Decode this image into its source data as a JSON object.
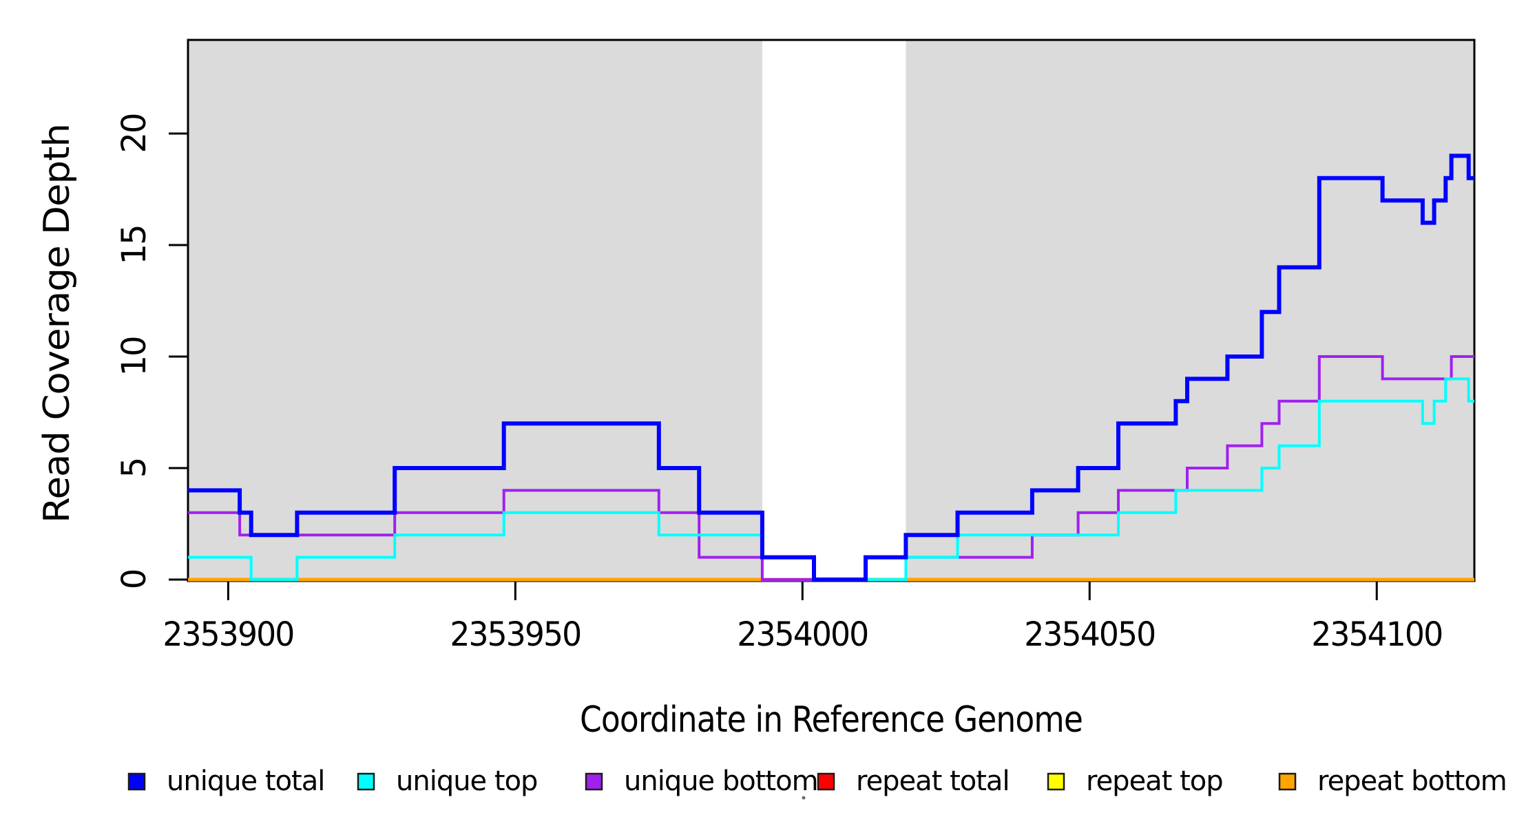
{
  "chart_data": {
    "type": "step-line",
    "title": "",
    "xlabel": "Coordinate in Reference Genome",
    "ylabel": "Read Coverage Depth",
    "xlim": [
      2353893,
      2354117
    ],
    "ylim": [
      0,
      24.2
    ],
    "x_ticks": [
      2353900,
      2353950,
      2354000,
      2354050,
      2354100
    ],
    "y_ticks": [
      0,
      5,
      10,
      15,
      20
    ],
    "grid": false,
    "legend_position": "bottom",
    "plot_background": "#ffffff",
    "shaded_regions": [
      {
        "x0": 2353893,
        "x1": 2353993,
        "color": "#DBDBDB"
      },
      {
        "x0": 2354018,
        "x1": 2354117,
        "color": "#DBDBDB"
      }
    ],
    "series": [
      {
        "name": "unique total",
        "color": "#0000FF",
        "width": 6,
        "steps": [
          [
            2353893,
            4
          ],
          [
            2353902,
            3
          ],
          [
            2353904,
            2
          ],
          [
            2353912,
            3
          ],
          [
            2353929,
            5
          ],
          [
            2353948,
            7
          ],
          [
            2353975,
            5
          ],
          [
            2353982,
            3
          ],
          [
            2353993,
            1
          ],
          [
            2354002,
            0
          ],
          [
            2354011,
            1
          ],
          [
            2354018,
            2
          ],
          [
            2354027,
            3
          ],
          [
            2354040,
            4
          ],
          [
            2354048,
            5
          ],
          [
            2354055,
            7
          ],
          [
            2354065,
            8
          ],
          [
            2354067,
            9
          ],
          [
            2354074,
            10
          ],
          [
            2354080,
            12
          ],
          [
            2354083,
            14
          ],
          [
            2354090,
            18
          ],
          [
            2354101,
            17
          ],
          [
            2354108,
            16
          ],
          [
            2354110,
            17
          ],
          [
            2354112,
            18
          ],
          [
            2354113,
            19
          ],
          [
            2354116,
            18
          ]
        ]
      },
      {
        "name": "unique top",
        "color": "#00FFFF",
        "width": 4,
        "steps": [
          [
            2353893,
            1
          ],
          [
            2353904,
            0
          ],
          [
            2353912,
            1
          ],
          [
            2353929,
            2
          ],
          [
            2353948,
            3
          ],
          [
            2353975,
            2
          ],
          [
            2353993,
            1
          ],
          [
            2354002,
            0
          ],
          [
            2354018,
            1
          ],
          [
            2354027,
            2
          ],
          [
            2354055,
            3
          ],
          [
            2354065,
            4
          ],
          [
            2354080,
            5
          ],
          [
            2354083,
            6
          ],
          [
            2354090,
            8
          ],
          [
            2354108,
            7
          ],
          [
            2354110,
            8
          ],
          [
            2354112,
            9
          ],
          [
            2354116,
            8
          ]
        ]
      },
      {
        "name": "unique bottom",
        "color": "#A020F0",
        "width": 4,
        "steps": [
          [
            2353893,
            3
          ],
          [
            2353902,
            2
          ],
          [
            2353929,
            3
          ],
          [
            2353948,
            4
          ],
          [
            2353975,
            3
          ],
          [
            2353982,
            1
          ],
          [
            2353993,
            0
          ],
          [
            2354011,
            1
          ],
          [
            2354040,
            2
          ],
          [
            2354048,
            3
          ],
          [
            2354055,
            4
          ],
          [
            2354067,
            5
          ],
          [
            2354074,
            6
          ],
          [
            2354080,
            7
          ],
          [
            2354083,
            8
          ],
          [
            2354090,
            10
          ],
          [
            2354101,
            9
          ],
          [
            2354113,
            10
          ]
        ]
      },
      {
        "name": "repeat total",
        "color": "#FF0000",
        "width": 4,
        "steps": [
          [
            2353893,
            0
          ]
        ]
      },
      {
        "name": "repeat top",
        "color": "#FFFF00",
        "width": 4,
        "steps": [
          [
            2353893,
            0
          ]
        ]
      },
      {
        "name": "repeat bottom",
        "color": "#FFA500",
        "width": 5,
        "steps": [
          [
            2353893,
            0
          ]
        ]
      }
    ],
    "draw_order": [
      "repeat total",
      "repeat top",
      "repeat bottom",
      "unique bottom",
      "unique top",
      "unique total"
    ],
    "legend": [
      {
        "label": "unique total",
        "color": "#0000FF"
      },
      {
        "label": "unique top",
        "color": "#00FFFF"
      },
      {
        "label": "unique bottom",
        "color": "#A020F0"
      },
      {
        "label": "repeat total",
        "color": "#FF0000"
      },
      {
        "label": "repeat top",
        "color": "#FFFF00"
      },
      {
        "label": "repeat bottom",
        "color": "#FFA500"
      }
    ]
  }
}
